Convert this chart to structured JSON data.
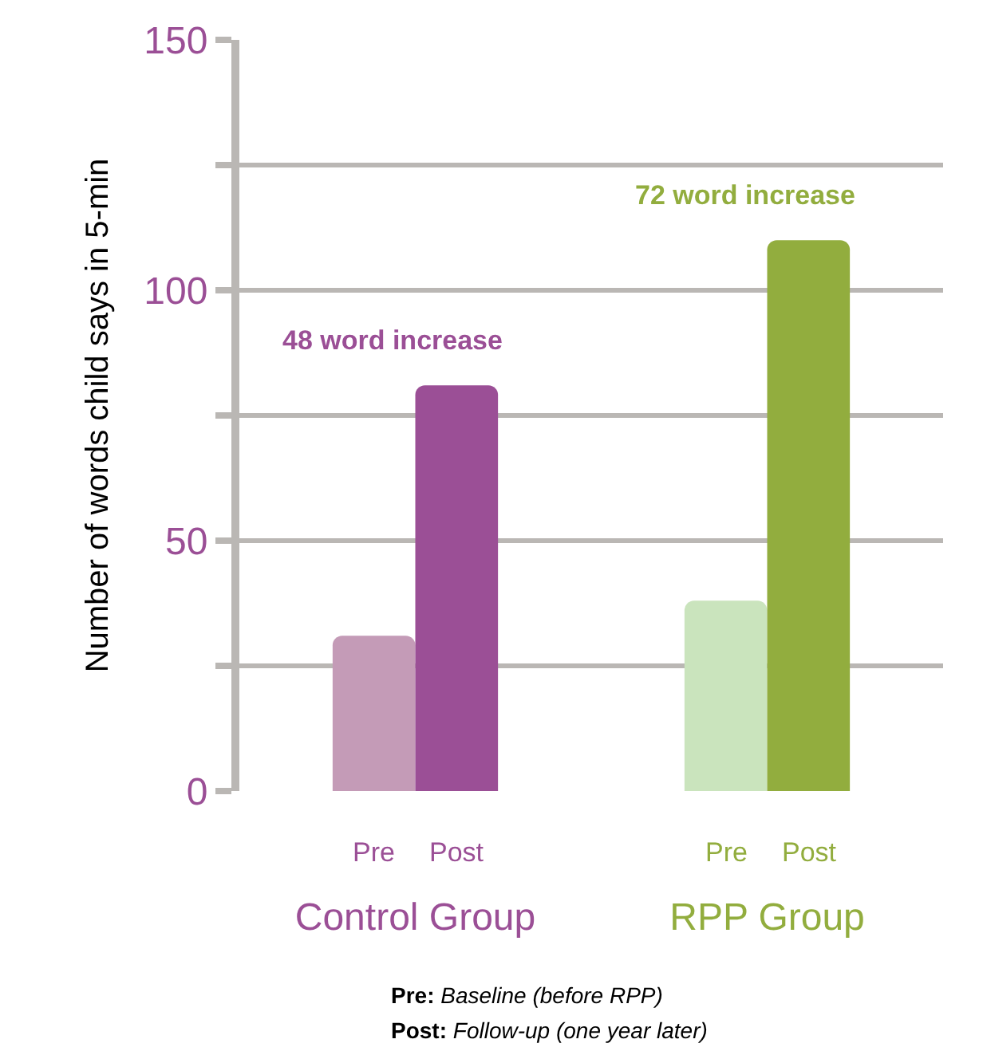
{
  "chart_data": {
    "type": "bar",
    "ylabel": "Number of words child says in 5-min",
    "categories": [
      "Control Group",
      "RPP Group"
    ],
    "series": [
      {
        "name": "Pre",
        "colors": [
          "#c49bb7",
          "#cae4bd"
        ],
        "values": [
          31,
          38
        ]
      },
      {
        "name": "Post",
        "colors": [
          "#9b4f96",
          "#92ad3e"
        ],
        "values": [
          81,
          110
        ]
      }
    ],
    "ylim": [
      0,
      150
    ],
    "yticks": [
      0,
      {
        "value": 25,
        "label": null
      },
      50,
      {
        "value": 75,
        "label": null
      },
      100,
      {
        "value": 125,
        "label": null
      },
      150
    ],
    "grid": "y",
    "legend": false,
    "annotations": [
      "48 word increase",
      "72 word increase",
      "Pre: Baseline (before RPP)",
      "Post: Follow-up (one year later)"
    ]
  }
}
